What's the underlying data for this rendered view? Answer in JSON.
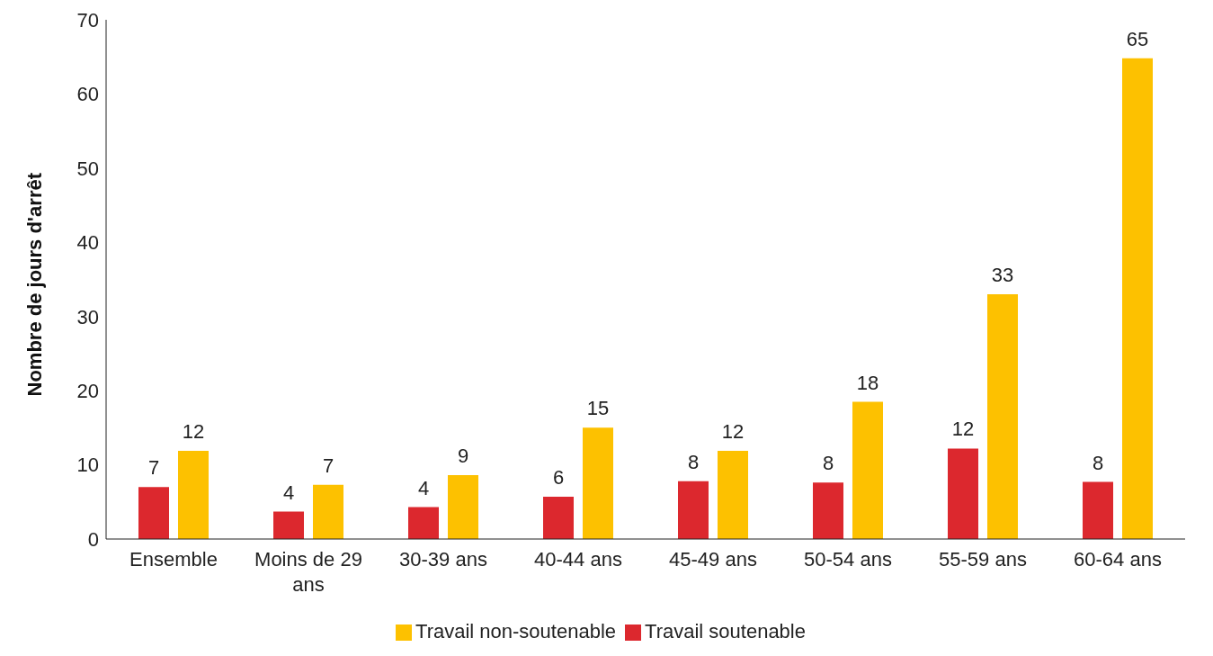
{
  "chart_data": {
    "type": "bar",
    "ylabel": "Nombre de jours d'arrêt",
    "categories": [
      "Ensemble",
      "Moins de 29 ans",
      "30-39 ans",
      "40-44 ans",
      "45-49 ans",
      "50-54 ans",
      "55-59 ans",
      "60-64 ans"
    ],
    "series": [
      {
        "name": "Travail soutenable",
        "color": "#dc282e",
        "values": [
          7.0,
          3.7,
          4.3,
          5.7,
          7.8,
          7.6,
          12.2,
          7.7
        ],
        "value_labels": [
          "7",
          "4",
          "4",
          "6",
          "8",
          "8",
          "12",
          "8"
        ]
      },
      {
        "name": "Travail non-soutenable",
        "color": "#fdc100",
        "values": [
          11.9,
          7.3,
          8.6,
          15.0,
          11.9,
          18.5,
          33.0,
          64.8
        ],
        "value_labels": [
          "12",
          "7",
          "9",
          "15",
          "12",
          "18",
          "33",
          "65"
        ]
      }
    ],
    "ylim": [
      0,
      70
    ],
    "yticks": [
      0,
      10,
      20,
      30,
      40,
      50,
      60,
      70
    ],
    "grid": false,
    "legend": "bottom"
  }
}
